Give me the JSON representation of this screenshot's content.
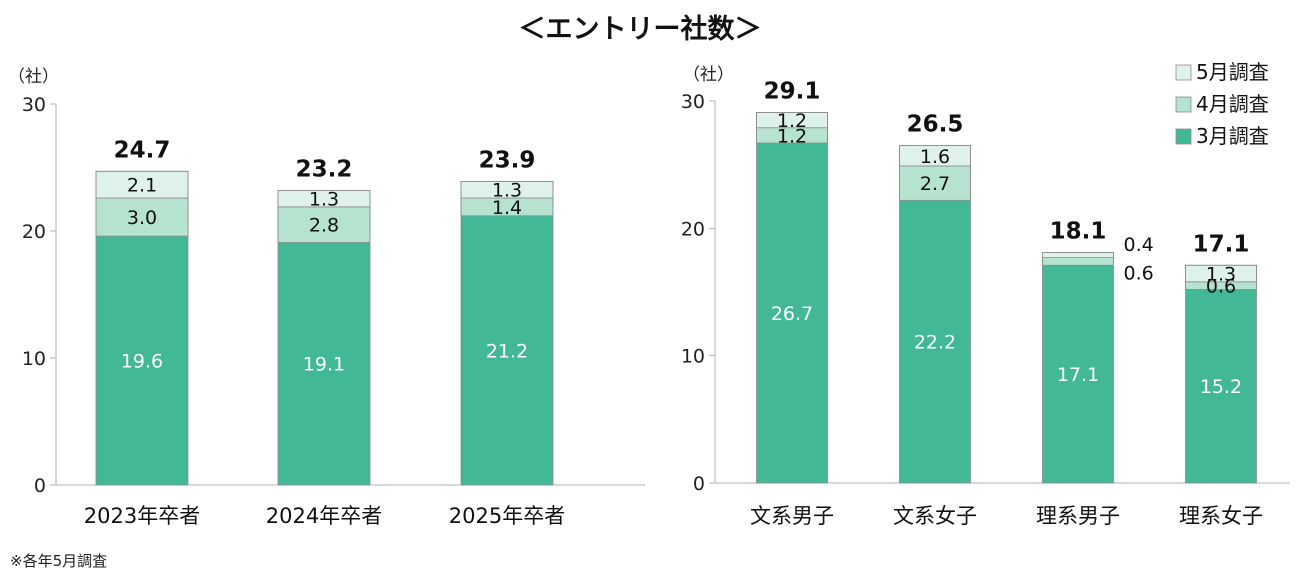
{
  "title": "＜エントリー社数＞",
  "note": "※各年5月調査",
  "legend": {
    "placement": "top-right",
    "items": [
      {
        "label": "5月調査",
        "color": "#dff2ea"
      },
      {
        "label": "4月調査",
        "color": "#b5e3d0"
      },
      {
        "label": "3月調査",
        "color": "#43b897"
      }
    ]
  },
  "colors": {
    "march": "#43b897",
    "april": "#b5e3d0",
    "may": "#dff2ea",
    "segment_border": "#8c8c8c",
    "axis": "#b3b3b3"
  },
  "chart_data": [
    {
      "type": "bar",
      "stacked": true,
      "unit": "（社）",
      "ylim": [
        0,
        30
      ],
      "yticks": [
        0,
        10,
        20,
        30
      ],
      "categories": [
        "2023年卒者",
        "2024年卒者",
        "2025年卒者"
      ],
      "series": [
        {
          "name": "3月調査",
          "values": [
            19.6,
            19.1,
            21.2
          ]
        },
        {
          "name": "4月調査",
          "values": [
            3.0,
            2.8,
            1.4
          ]
        },
        {
          "name": "5月調査",
          "values": [
            2.1,
            1.3,
            1.3
          ]
        }
      ],
      "totals": [
        24.7,
        23.2,
        23.9
      ]
    },
    {
      "type": "bar",
      "stacked": true,
      "unit": "（社）",
      "ylim": [
        0,
        30
      ],
      "yticks": [
        0,
        10,
        20,
        30
      ],
      "categories": [
        "文系男子",
        "文系女子",
        "理系男子",
        "理系女子"
      ],
      "series": [
        {
          "name": "3月調査",
          "values": [
            26.7,
            22.2,
            17.1,
            15.2
          ]
        },
        {
          "name": "4月調査",
          "values": [
            1.2,
            2.7,
            0.6,
            0.6
          ]
        },
        {
          "name": "5月調査",
          "values": [
            1.2,
            1.6,
            0.4,
            1.3
          ]
        }
      ],
      "totals": [
        29.1,
        26.5,
        18.1,
        17.1
      ]
    }
  ]
}
